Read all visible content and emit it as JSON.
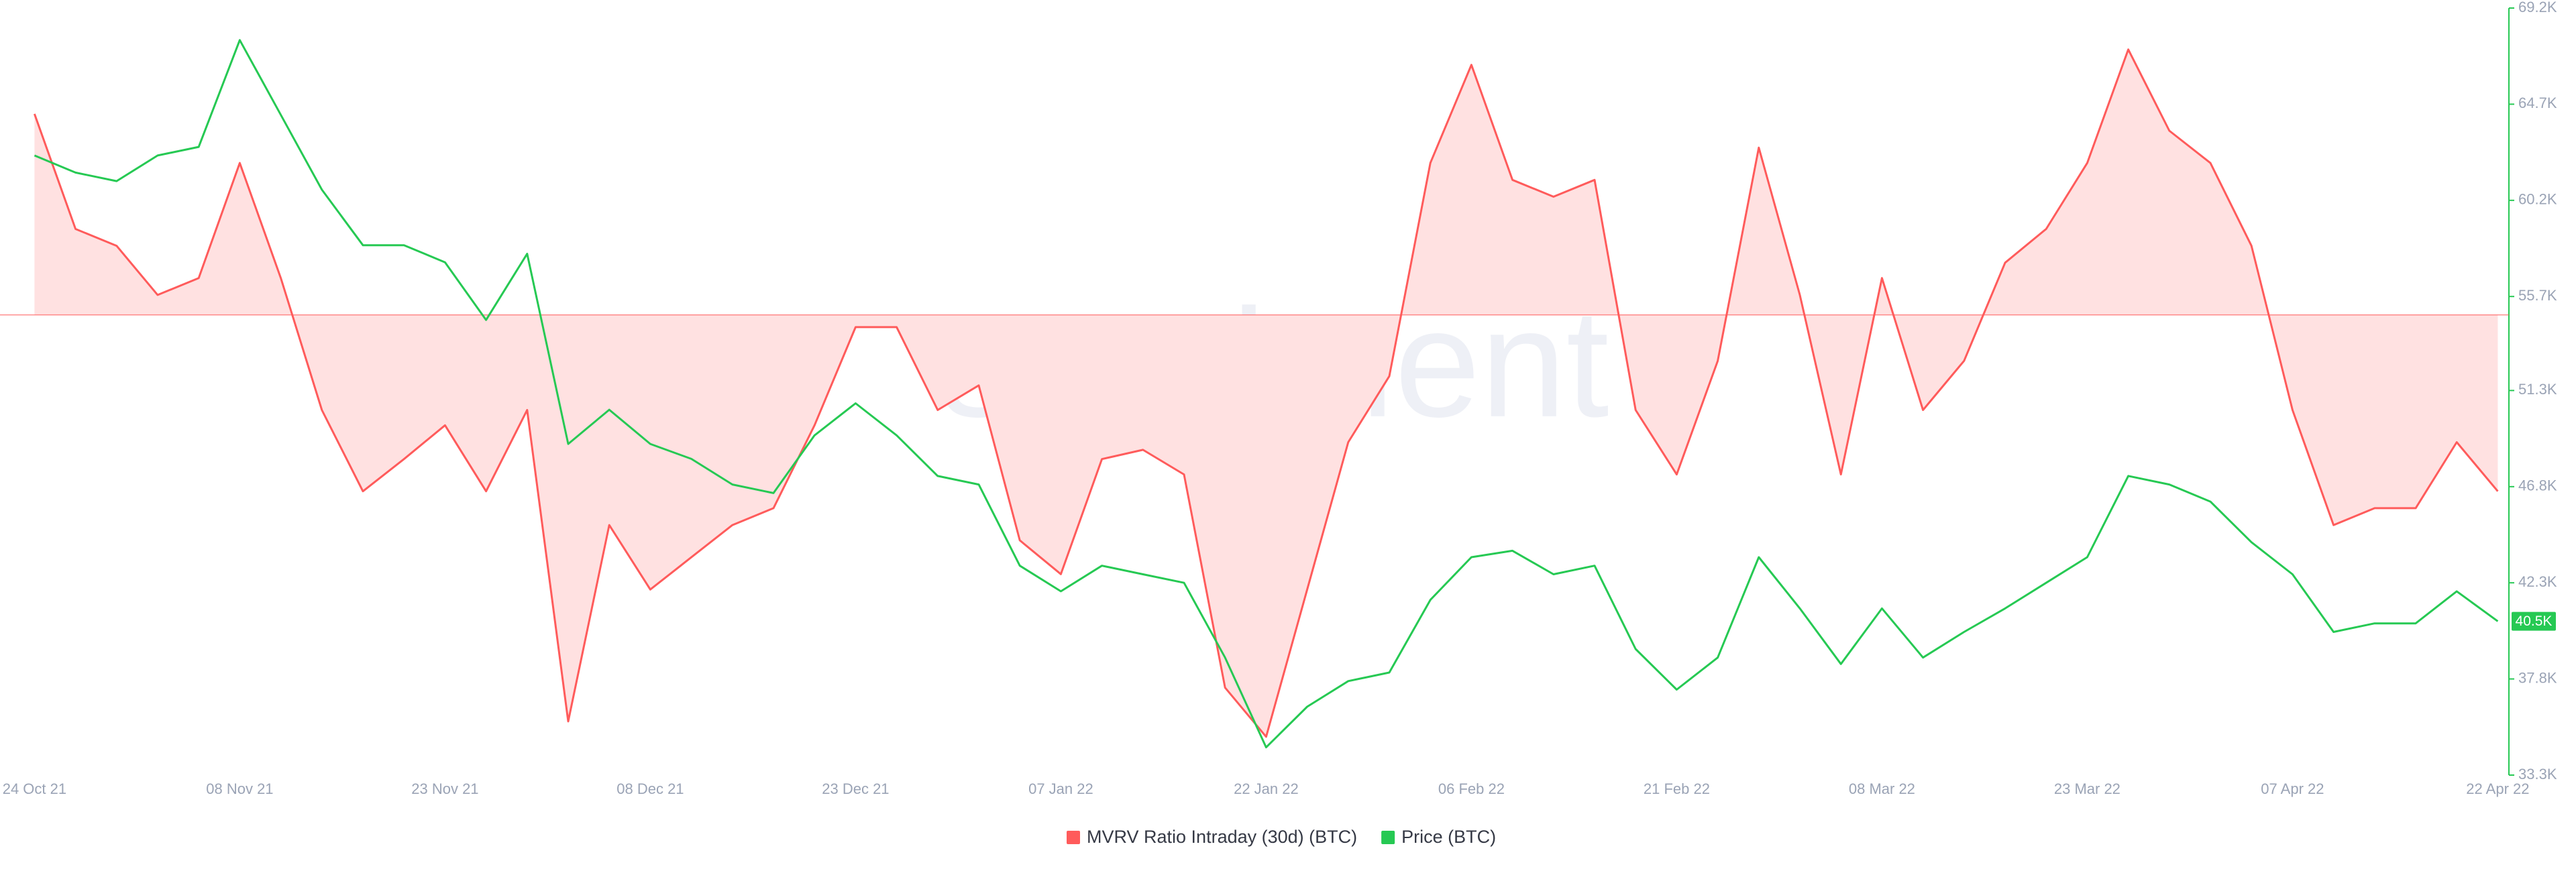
{
  "chart_data": {
    "type": "line",
    "watermark": "santiment",
    "categories": [
      "24 Oct 21",
      null,
      null,
      null,
      null,
      "08 Nov 21",
      null,
      null,
      null,
      null,
      "23 Nov 21",
      null,
      null,
      null,
      null,
      "08 Dec 21",
      null,
      null,
      null,
      null,
      "23 Dec 21",
      null,
      null,
      null,
      null,
      "07 Jan 22",
      null,
      null,
      null,
      null,
      "22 Jan 22",
      null,
      null,
      null,
      null,
      "06 Feb 22",
      null,
      null,
      null,
      null,
      "21 Feb 22",
      null,
      null,
      null,
      null,
      "08 Mar 22",
      null,
      null,
      null,
      null,
      "23 Mar 22",
      null,
      null,
      null,
      null,
      "07 Apr 22",
      null,
      null,
      null,
      null,
      "22 Apr 22"
    ],
    "ylim": [
      -30,
      20
    ],
    "y2lim": [
      33300,
      69200
    ],
    "y2ticks": [
      {
        "value": 33300,
        "label": "33.3K"
      },
      {
        "value": 37800,
        "label": "37.8K"
      },
      {
        "value": 42300,
        "label": "42.3K"
      },
      {
        "value": 46800,
        "label": "46.8K"
      },
      {
        "value": 51300,
        "label": "51.3K"
      },
      {
        "value": 55700,
        "label": "55.7K"
      },
      {
        "value": 60200,
        "label": "60.2K"
      },
      {
        "value": 64700,
        "label": "64.7K"
      },
      {
        "value": 69200,
        "label": "69.2K"
      }
    ],
    "grid": false,
    "legend": "bottom",
    "series": [
      {
        "name": "MVRV Ratio Intraday (30d) (BTC)",
        "color": "#ff5b5b",
        "fill": "#ffe1e1",
        "axis": "y",
        "values": [
          13.1,
          5.6,
          4.5,
          1.3,
          2.4,
          9.9,
          2.4,
          -6.2,
          -11.5,
          -9.4,
          -7.2,
          -11.5,
          -6.2,
          -26.5,
          -13.7,
          -17.9,
          -15.8,
          -13.7,
          -12.6,
          -7.2,
          -0.8,
          -0.8,
          -6.2,
          -4.6,
          -14.7,
          -16.9,
          -9.4,
          -8.8,
          -10.4,
          -24.3,
          -27.5,
          -17.9,
          -8.3,
          -4.0,
          9.9,
          16.3,
          8.8,
          7.7,
          8.8,
          -6.2,
          -10.4,
          -3.0,
          10.9,
          1.3,
          -10.4,
          2.4,
          -6.2,
          -3.0,
          3.4,
          5.6,
          9.9,
          17.3,
          12.0,
          9.9,
          4.5,
          -6.2,
          -13.7,
          -12.6,
          -12.6,
          -8.3,
          -11.5
        ]
      },
      {
        "name": "Price (BTC)",
        "color": "#26c953",
        "axis": "y2",
        "last_label": "40.5K",
        "values": [
          62300,
          61500,
          61100,
          62300,
          62700,
          67700,
          64200,
          60700,
          58100,
          58100,
          57300,
          54600,
          57700,
          48800,
          50400,
          48800,
          48100,
          46900,
          46500,
          49200,
          50700,
          49200,
          47300,
          46900,
          43100,
          41900,
          43100,
          42700,
          42300,
          38800,
          34600,
          36500,
          37700,
          38100,
          41500,
          43500,
          43800,
          42700,
          43100,
          39200,
          37300,
          38800,
          43500,
          41100,
          38500,
          41100,
          38800,
          40000,
          41100,
          42300,
          43500,
          47300,
          46900,
          46100,
          44200,
          42700,
          40000,
          40400,
          40400,
          41900,
          40500
        ]
      }
    ]
  }
}
